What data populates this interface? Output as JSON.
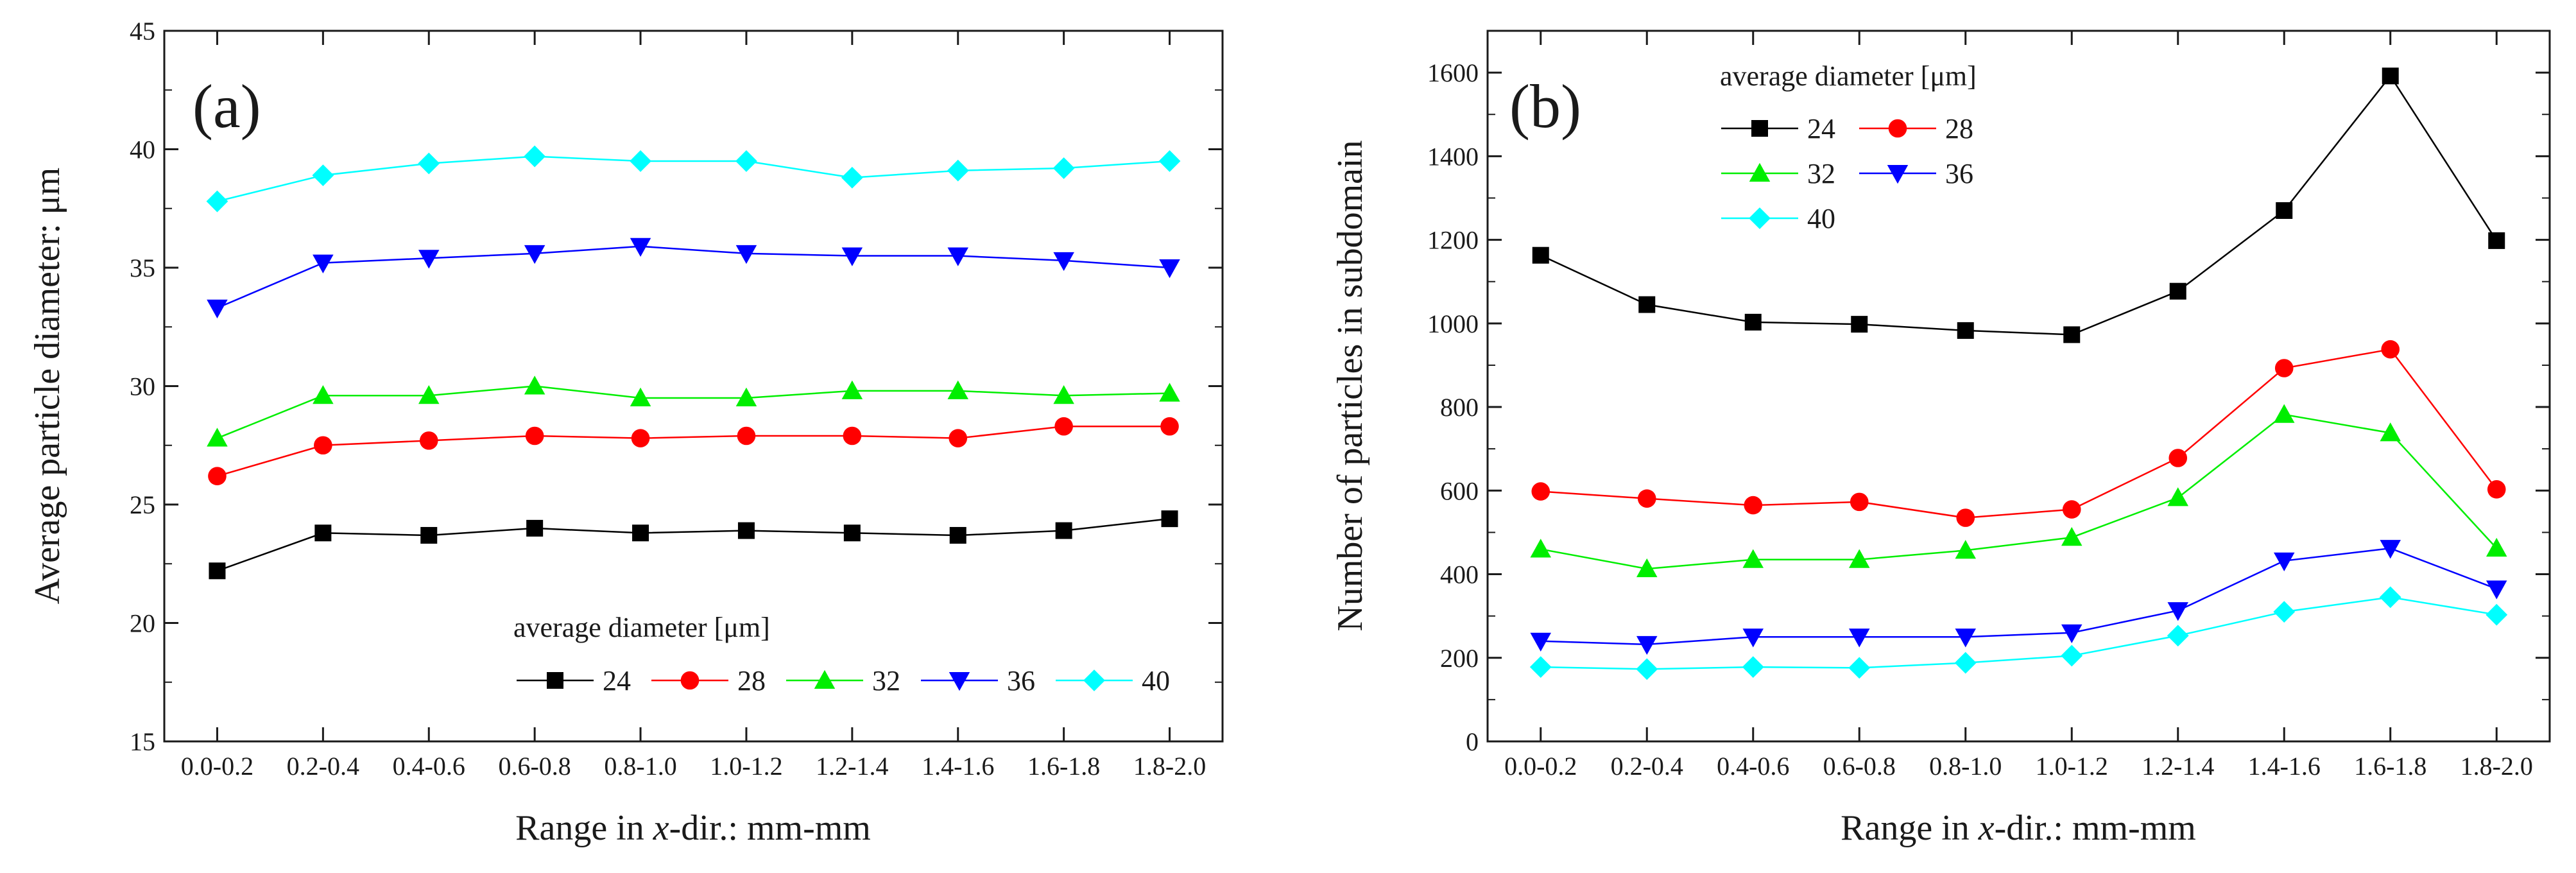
{
  "chart_data": [
    {
      "panel_label": "(a)",
      "type": "line",
      "xlabel_parts": [
        "Range in ",
        "x",
        "-dir.: mm-mm"
      ],
      "ylabel": "Average particle diameter: μm",
      "categories": [
        "0.0-0.2",
        "0.2-0.4",
        "0.4-0.6",
        "0.6-0.8",
        "0.8-1.0",
        "1.0-1.2",
        "1.2-1.4",
        "1.4-1.6",
        "1.6-1.8",
        "1.8-2.0"
      ],
      "ylim": [
        15,
        45
      ],
      "yticks": [
        15,
        20,
        25,
        30,
        35,
        40,
        45
      ],
      "legend": {
        "title": "average diameter [μm]",
        "placement": "lower-center",
        "rows": [
          [
            "24",
            "28",
            "32",
            "36",
            "40"
          ]
        ]
      },
      "series": [
        {
          "name": "24",
          "color": "#000000",
          "marker": "square",
          "values": [
            22.2,
            23.8,
            23.7,
            24.0,
            23.8,
            23.9,
            23.8,
            23.7,
            23.9,
            24.4
          ]
        },
        {
          "name": "28",
          "color": "#ff0000",
          "marker": "circle",
          "values": [
            26.2,
            27.5,
            27.7,
            27.9,
            27.8,
            27.9,
            27.9,
            27.8,
            28.3,
            28.3
          ]
        },
        {
          "name": "32",
          "color": "#00ee00",
          "marker": "triangle-up",
          "values": [
            27.8,
            29.6,
            29.6,
            30.0,
            29.5,
            29.5,
            29.8,
            29.8,
            29.6,
            29.7
          ]
        },
        {
          "name": "36",
          "color": "#0000ff",
          "marker": "triangle-down",
          "values": [
            33.3,
            35.2,
            35.4,
            35.6,
            35.9,
            35.6,
            35.5,
            35.5,
            35.3,
            35.0
          ]
        },
        {
          "name": "40",
          "color": "#00ffff",
          "marker": "diamond",
          "values": [
            37.8,
            38.9,
            39.4,
            39.7,
            39.5,
            39.5,
            38.8,
            39.1,
            39.2,
            39.5
          ]
        }
      ]
    },
    {
      "panel_label": "(b)",
      "type": "line",
      "xlabel_parts": [
        "Range in ",
        "x",
        "-dir.: mm-mm"
      ],
      "ylabel": "Number of particles in subdomain",
      "categories": [
        "0.0-0.2",
        "0.2-0.4",
        "0.4-0.6",
        "0.6-0.8",
        "0.8-1.0",
        "1.0-1.2",
        "1.2-1.4",
        "1.4-1.6",
        "1.6-1.8",
        "1.8-2.0"
      ],
      "ylim": [
        0,
        1700
      ],
      "yticks": [
        0,
        200,
        400,
        600,
        800,
        1000,
        1200,
        1400,
        1600
      ],
      "legend": {
        "title": "average diameter [μm]",
        "placement": "top-left",
        "rows": [
          [
            "24",
            "28"
          ],
          [
            "32",
            "36"
          ],
          [
            "40"
          ]
        ]
      },
      "series": [
        {
          "name": "24",
          "color": "#000000",
          "marker": "square",
          "values": [
            1163,
            1045,
            1003,
            998,
            983,
            973,
            1077,
            1270,
            1592,
            1198
          ]
        },
        {
          "name": "28",
          "color": "#ff0000",
          "marker": "circle",
          "values": [
            598,
            581,
            565,
            573,
            535,
            555,
            678,
            893,
            938,
            603
          ]
        },
        {
          "name": "32",
          "color": "#00ee00",
          "marker": "triangle-up",
          "values": [
            460,
            413,
            435,
            435,
            457,
            488,
            583,
            782,
            738,
            462
          ]
        },
        {
          "name": "36",
          "color": "#0000ff",
          "marker": "triangle-down",
          "values": [
            240,
            232,
            250,
            250,
            250,
            260,
            313,
            432,
            462,
            365
          ]
        },
        {
          "name": "40",
          "color": "#00ffff",
          "marker": "diamond",
          "values": [
            178,
            173,
            178,
            176,
            188,
            205,
            253,
            310,
            345,
            303
          ]
        }
      ]
    }
  ]
}
